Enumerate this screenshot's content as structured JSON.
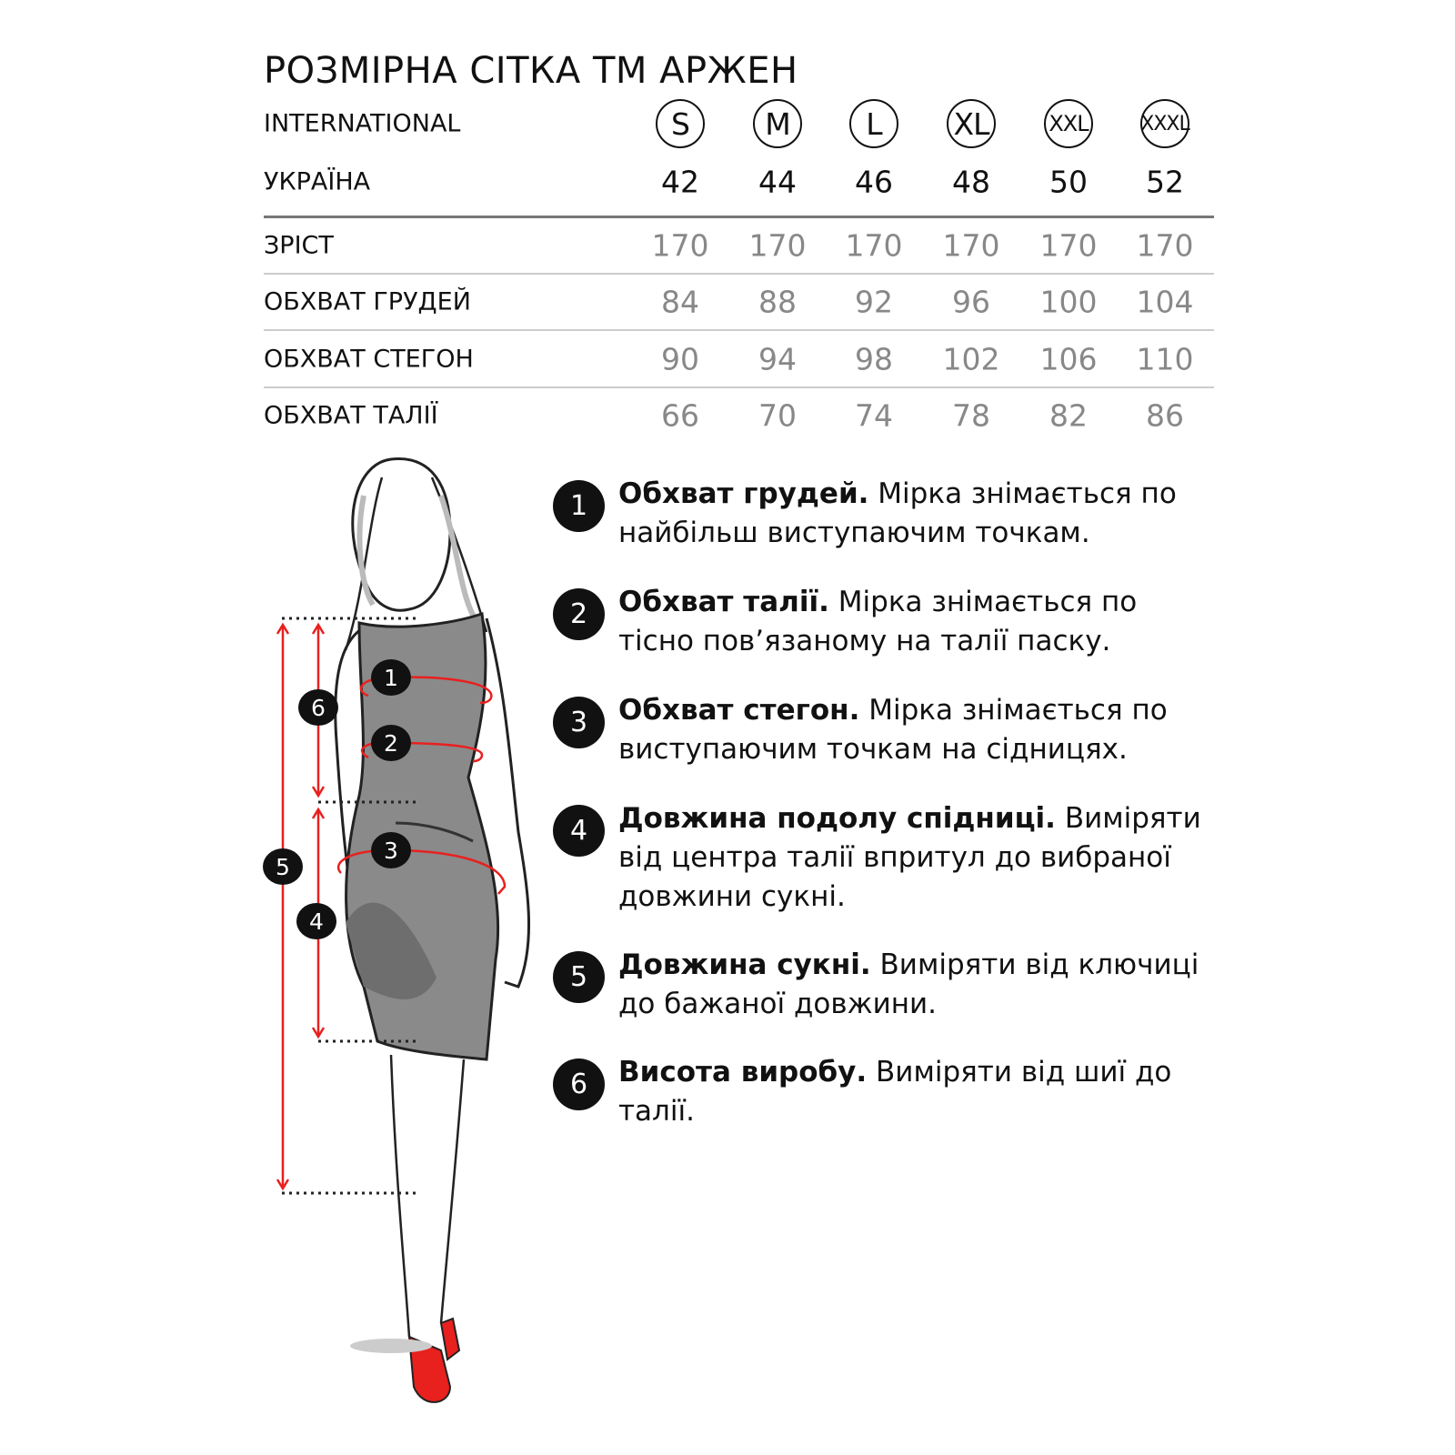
{
  "title": "РОЗМІРНА СІТКА ТМ АРЖЕН",
  "colors": {
    "accent": "#e8201e",
    "marker": "#111111",
    "values": "#888888"
  },
  "table": {
    "international": {
      "label": "INTERNATIONAL",
      "values": [
        "S",
        "M",
        "L",
        "XL",
        "XXL",
        "XXXL"
      ]
    },
    "ukraine": {
      "label": "УКРАЇНА",
      "values": [
        "42",
        "44",
        "46",
        "48",
        "50",
        "52"
      ]
    },
    "rows": [
      {
        "label": "ЗРІСТ",
        "values": [
          "170",
          "170",
          "170",
          "170",
          "170",
          "170"
        ]
      },
      {
        "label": "ОБХВАТ ГРУДЕЙ",
        "values": [
          "84",
          "88",
          "92",
          "96",
          "100",
          "104"
        ]
      },
      {
        "label": "ОБХВАТ СТЕГОН",
        "values": [
          "90",
          "94",
          "98",
          "102",
          "106",
          "110"
        ]
      },
      {
        "label": "ОБХВАТ ТАЛІЇ",
        "values": [
          "66",
          "70",
          "74",
          "78",
          "82",
          "86"
        ]
      }
    ]
  },
  "instructions": [
    {
      "num": "1",
      "bold": "Обхват грудей.",
      "text": " Мірка знімається по найбільш виступаючим точкам."
    },
    {
      "num": "2",
      "bold": "Обхват талії.",
      "text": " Мірка знімається по тісно пов’язаному на талії паску."
    },
    {
      "num": "3",
      "bold": "Обхват стегон.",
      "text": " Мірка знімається по виступаючим точкам на сідницях."
    },
    {
      "num": "4",
      "bold": "Довжина подолу спідниці.",
      "text": " Виміряти від центра талії впритул до вибраної довжини сукні."
    },
    {
      "num": "5",
      "bold": "Довжина сукні.",
      "text": " Виміряти від ключиці до бажаної довжини."
    },
    {
      "num": "6",
      "bold": "Висота виробу.",
      "text": " Виміряти від шиї до талії."
    }
  ]
}
